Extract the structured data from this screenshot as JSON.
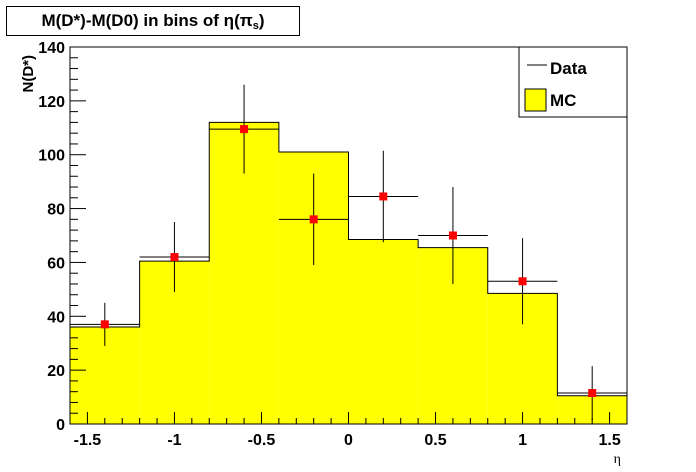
{
  "chart_data": {
    "type": "bar",
    "title": "M(D*)-M(D0) in bins of η(π_s)",
    "title_main": "M(D*)-M(D0) in bins of η(π",
    "title_sub": "s",
    "title_close": ")",
    "xlabel": "η",
    "ylabel": "N(D*)",
    "xlim": [
      -1.6,
      1.6
    ],
    "ylim": [
      0,
      140
    ],
    "x_ticks": [
      {
        "value": -1.5,
        "label": "-1.5"
      },
      {
        "value": -1,
        "label": "-1"
      },
      {
        "value": -0.5,
        "label": "-0.5"
      },
      {
        "value": 0,
        "label": "0"
      },
      {
        "value": 0.5,
        "label": "0.5"
      },
      {
        "value": 1,
        "label": "1"
      },
      {
        "value": 1.5,
        "label": "1.5"
      }
    ],
    "y_ticks": [
      {
        "value": 0,
        "label": "0"
      },
      {
        "value": 20,
        "label": "20"
      },
      {
        "value": 40,
        "label": "40"
      },
      {
        "value": 60,
        "label": "60"
      },
      {
        "value": 80,
        "label": "80"
      },
      {
        "value": 100,
        "label": "100"
      },
      {
        "value": 120,
        "label": "120"
      },
      {
        "value": 140,
        "label": "140"
      }
    ],
    "bin_edges": [
      -1.6,
      -1.2,
      -0.8,
      -0.4,
      0.0,
      0.4,
      0.8,
      1.2,
      1.6
    ],
    "bin_centers": [
      -1.4,
      -1.0,
      -0.6,
      -0.2,
      0.2,
      0.6,
      1.0,
      1.4
    ],
    "series": [
      {
        "name": "MC",
        "type": "histogram",
        "values": [
          36,
          60.5,
          112,
          101,
          68.5,
          65.5,
          48.5,
          10.5
        ],
        "color": "#ffff00"
      },
      {
        "name": "Data",
        "type": "points",
        "values": [
          37,
          62,
          109.5,
          76,
          84.5,
          70,
          53,
          11.5
        ],
        "errors": [
          8,
          13,
          16.5,
          17,
          17,
          18,
          16,
          10
        ],
        "color": "#ff0000"
      }
    ],
    "legend_position": "top-right",
    "legend": [
      {
        "label": "Data",
        "kind": "line"
      },
      {
        "label": "MC",
        "kind": "box"
      }
    ],
    "grid": false
  }
}
